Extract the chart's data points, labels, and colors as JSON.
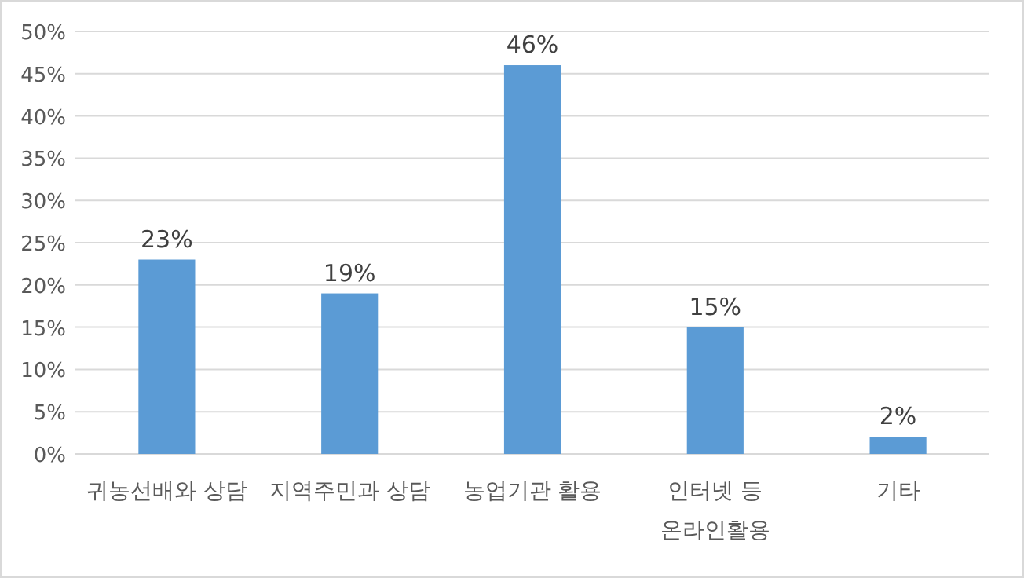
{
  "chart_data": {
    "type": "bar",
    "categories": [
      "귀농선배와 상담",
      "지역주민과 상담",
      "농업기관 활용",
      "인터넷 등 온라인활용",
      "기타"
    ],
    "values": [
      23,
      19,
      46,
      15,
      2
    ],
    "color": "#5b9bd5",
    "value_labels": [
      "23%",
      "19%",
      "46%",
      "15%",
      "2%"
    ],
    "ylim": [
      0,
      50
    ],
    "yticks": [
      {
        "value": 0,
        "label": "0%"
      },
      {
        "value": 5,
        "label": "5%"
      },
      {
        "value": 10,
        "label": "10%"
      },
      {
        "value": 15,
        "label": "15%"
      },
      {
        "value": 20,
        "label": "20%"
      },
      {
        "value": 25,
        "label": "25%"
      },
      {
        "value": 30,
        "label": "30%"
      },
      {
        "value": 35,
        "label": "35%"
      },
      {
        "value": 40,
        "label": "40%"
      },
      {
        "value": 45,
        "label": "45%"
      },
      {
        "value": 50,
        "label": "50%"
      }
    ],
    "grid": "y"
  }
}
